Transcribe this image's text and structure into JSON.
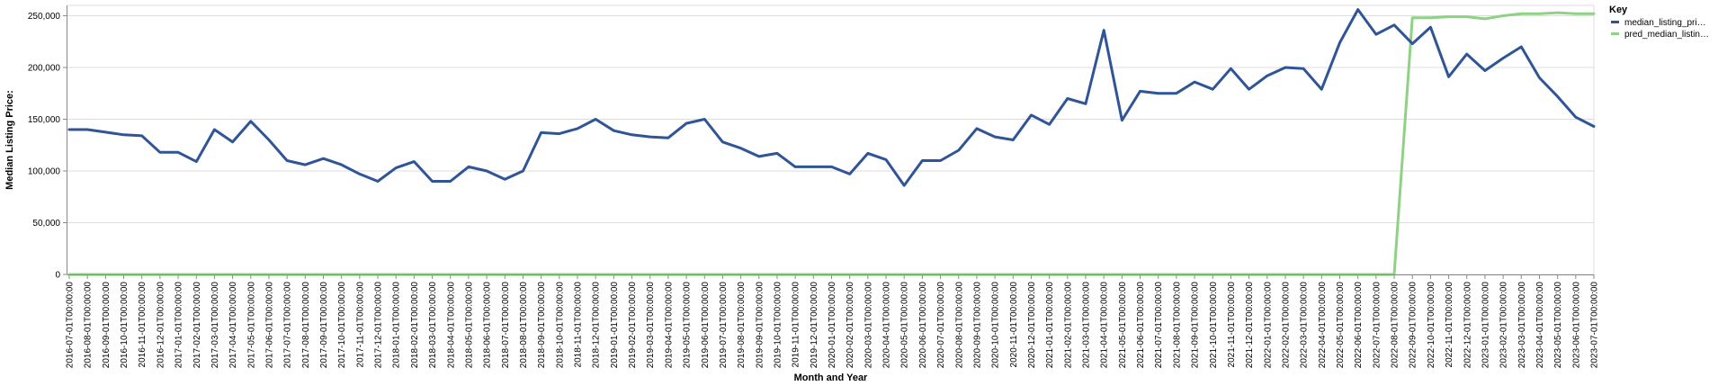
{
  "chart_data": {
    "type": "line",
    "xlabel": "Month and Year",
    "ylabel": "Median Listing Price:",
    "ylim": [
      0,
      260000
    ],
    "y_ticks": [
      "0",
      "50,000",
      "100,000",
      "150,000",
      "200,000",
      "250,000"
    ],
    "y_tick_values": [
      0,
      50000,
      100000,
      150000,
      200000,
      250000
    ],
    "grid": true,
    "legend_title": "Key",
    "legend_position": "top-right",
    "x": [
      "2016-07-01T00:00:00",
      "2016-08-01T00:00:00",
      "2016-09-01T00:00:00",
      "2016-10-01T00:00:00",
      "2016-11-01T00:00:00",
      "2016-12-01T00:00:00",
      "2017-01-01T00:00:00",
      "2017-02-01T00:00:00",
      "2017-03-01T00:00:00",
      "2017-04-01T00:00:00",
      "2017-05-01T00:00:00",
      "2017-06-01T00:00:00",
      "2017-07-01T00:00:00",
      "2017-08-01T00:00:00",
      "2017-09-01T00:00:00",
      "2017-10-01T00:00:00",
      "2017-11-01T00:00:00",
      "2017-12-01T00:00:00",
      "2018-01-01T00:00:00",
      "2018-02-01T00:00:00",
      "2018-03-01T00:00:00",
      "2018-04-01T00:00:00",
      "2018-05-01T00:00:00",
      "2018-06-01T00:00:00",
      "2018-07-01T00:00:00",
      "2018-08-01T00:00:00",
      "2018-09-01T00:00:00",
      "2018-10-01T00:00:00",
      "2018-11-01T00:00:00",
      "2018-12-01T00:00:00",
      "2019-01-01T00:00:00",
      "2019-02-01T00:00:00",
      "2019-03-01T00:00:00",
      "2019-04-01T00:00:00",
      "2019-05-01T00:00:00",
      "2019-06-01T00:00:00",
      "2019-07-01T00:00:00",
      "2019-08-01T00:00:00",
      "2019-09-01T00:00:00",
      "2019-10-01T00:00:00",
      "2019-11-01T00:00:00",
      "2019-12-01T00:00:00",
      "2020-01-01T00:00:00",
      "2020-02-01T00:00:00",
      "2020-03-01T00:00:00",
      "2020-04-01T00:00:00",
      "2020-05-01T00:00:00",
      "2020-06-01T00:00:00",
      "2020-07-01T00:00:00",
      "2020-08-01T00:00:00",
      "2020-09-01T00:00:00",
      "2020-10-01T00:00:00",
      "2020-11-01T00:00:00",
      "2020-12-01T00:00:00",
      "2021-01-01T00:00:00",
      "2021-02-01T00:00:00",
      "2021-03-01T00:00:00",
      "2021-04-01T00:00:00",
      "2021-05-01T00:00:00",
      "2021-06-01T00:00:00",
      "2021-07-01T00:00:00",
      "2021-08-01T00:00:00",
      "2021-09-01T00:00:00",
      "2021-10-01T00:00:00",
      "2021-11-01T00:00:00",
      "2021-12-01T00:00:00",
      "2022-01-01T00:00:00",
      "2022-02-01T00:00:00",
      "2022-03-01T00:00:00",
      "2022-04-01T00:00:00",
      "2022-05-01T00:00:00",
      "2022-06-01T00:00:00",
      "2022-07-01T00:00:00",
      "2022-08-01T00:00:00",
      "2022-09-01T00:00:00",
      "2022-10-01T00:00:00",
      "2022-11-01T00:00:00",
      "2022-12-01T00:00:00",
      "2023-01-01T00:00:00",
      "2023-02-01T00:00:00",
      "2023-03-01T00:00:00",
      "2023-04-01T00:00:00",
      "2023-05-01T00:00:00",
      "2023-06-01T00:00:00",
      "2023-07-01T00:00:00"
    ],
    "series": [
      {
        "name": "median_listing_pri…",
        "color": "#2f5597",
        "values": [
          140000,
          140000,
          137500,
          135000,
          134000,
          118000,
          118000,
          109000,
          140000,
          128000,
          148000,
          130000,
          110000,
          106000,
          112000,
          106000,
          97000,
          90000,
          103000,
          109000,
          90000,
          90000,
          104000,
          100000,
          92000,
          100000,
          137000,
          136000,
          141000,
          150000,
          139000,
          135000,
          133000,
          132000,
          146000,
          150000,
          128000,
          122000,
          114000,
          117000,
          104000,
          104000,
          104000,
          97000,
          117000,
          111000,
          86000,
          110000,
          110000,
          120000,
          141000,
          133000,
          130000,
          154000,
          145000,
          170000,
          165000,
          236000,
          149000,
          177000,
          175000,
          175000,
          186000,
          179000,
          199000,
          179000,
          192000,
          200000,
          199000,
          179000,
          224000,
          256000,
          232000,
          241000,
          223000,
          239000,
          191000,
          213000,
          197000,
          209000,
          220000,
          190000,
          172000,
          152000,
          143000
        ]
      },
      {
        "name": "pred_median_listin…",
        "color": "#8fd185",
        "values": [
          0,
          0,
          0,
          0,
          0,
          0,
          0,
          0,
          0,
          0,
          0,
          0,
          0,
          0,
          0,
          0,
          0,
          0,
          0,
          0,
          0,
          0,
          0,
          0,
          0,
          0,
          0,
          0,
          0,
          0,
          0,
          0,
          0,
          0,
          0,
          0,
          0,
          0,
          0,
          0,
          0,
          0,
          0,
          0,
          0,
          0,
          0,
          0,
          0,
          0,
          0,
          0,
          0,
          0,
          0,
          0,
          0,
          0,
          0,
          0,
          0,
          0,
          0,
          0,
          0,
          0,
          0,
          0,
          0,
          0,
          0,
          0,
          0,
          0,
          248000,
          248000,
          249000,
          249000,
          247000,
          250000,
          252000,
          252000,
          253000,
          252000,
          252000
        ]
      }
    ]
  }
}
